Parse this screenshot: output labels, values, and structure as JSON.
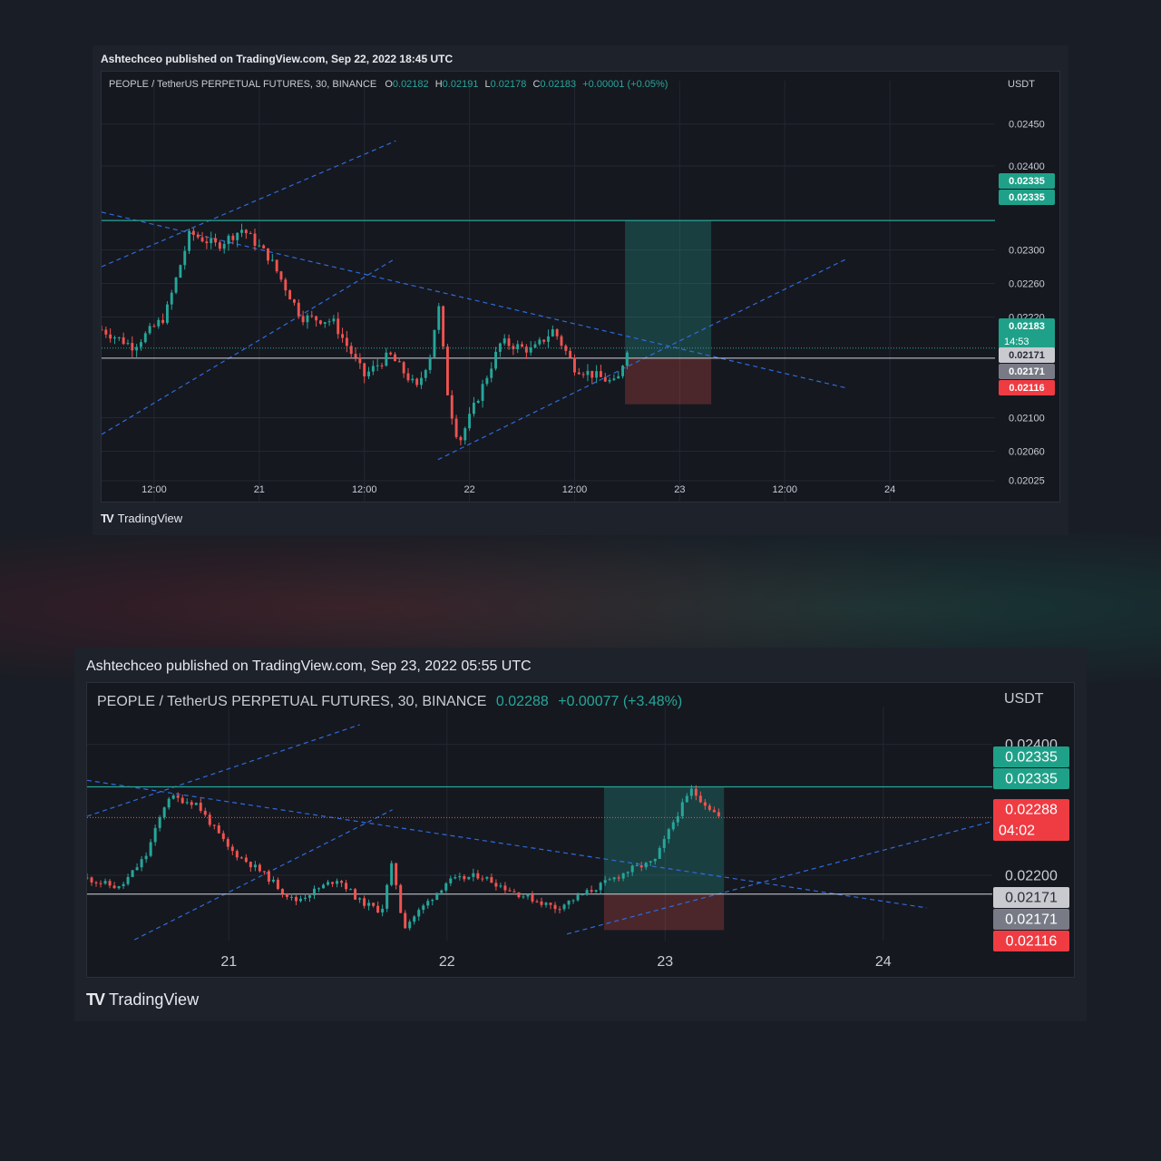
{
  "card1": {
    "publisher": "Ashtechceo published on TradingView.com, Sep 22, 2022 18:45 UTC",
    "symbol": "PEOPLE / TetherUS PERPETUAL FUTURES, 30, BINANCE",
    "ohlc": {
      "o_label": "O",
      "o": "0.02182",
      "h_label": "H",
      "h": "0.02191",
      "l_label": "L",
      "l": "0.02178",
      "c_label": "C",
      "c": "0.02183",
      "change": "+0.00001 (+0.05%)"
    },
    "currency": "USDT",
    "brand": "TradingView"
  },
  "card2": {
    "publisher": "Ashtechceo published on TradingView.com, Sep 23, 2022 05:55 UTC",
    "symbol": "PEOPLE / TetherUS PERPETUAL FUTURES, 30, BINANCE",
    "last": "0.02288",
    "change": "+0.00077 (+3.48%)",
    "currency": "USDT",
    "brand": "TradingView"
  },
  "colors": {
    "up": "#26a69a",
    "down": "#ef5350",
    "trend": "#2f6bdc",
    "target": "#26a69a",
    "stop": "#ef5350",
    "neutral": "#d1d4dc"
  },
  "chart_data": [
    {
      "type": "candlestick",
      "title": "PEOPLE / TetherUS PERPETUAL FUTURES, 30, BINANCE",
      "ylabel": "USDT",
      "ylim": [
        0.02,
        0.0248
      ],
      "x_ticks": [
        "12:00",
        "21",
        "12:00",
        "22",
        "12:00",
        "23",
        "12:00",
        "24"
      ],
      "y_ticks": [
        "0.02450",
        "0.02400",
        "0.02300",
        "0.02260",
        "0.02220",
        "0.02100",
        "0.02060",
        "0.02025"
      ],
      "x_range_days": [
        20.25,
        24.5
      ],
      "path": [
        [
          20.25,
          0.02205
        ],
        [
          20.4,
          0.02185
        ],
        [
          20.55,
          0.0222
        ],
        [
          20.67,
          0.0232
        ],
        [
          20.8,
          0.02305
        ],
        [
          20.92,
          0.02325
        ],
        [
          21.05,
          0.0229
        ],
        [
          21.2,
          0.0222
        ],
        [
          21.35,
          0.02215
        ],
        [
          21.5,
          0.0215
        ],
        [
          21.62,
          0.02175
        ],
        [
          21.75,
          0.02135
        ],
        [
          21.82,
          0.0218
        ],
        [
          21.85,
          0.0224
        ],
        [
          21.9,
          0.0212
        ],
        [
          21.95,
          0.0207
        ],
        [
          22.05,
          0.0213
        ],
        [
          22.15,
          0.0219
        ],
        [
          22.3,
          0.0218
        ],
        [
          22.4,
          0.02205
        ],
        [
          22.5,
          0.0216
        ],
        [
          22.6,
          0.0215
        ],
        [
          22.7,
          0.0214
        ],
        [
          22.75,
          0.02183
        ]
      ],
      "drawings": {
        "horizontal_levels": [
          "0.02335",
          "0.02171"
        ],
        "target": "0.02335",
        "entry": "0.02171",
        "stop": "0.02116"
      },
      "price_labels": [
        {
          "value": "0.02335",
          "style": "target"
        },
        {
          "value": "0.02335",
          "style": "target"
        },
        {
          "value": "0.02183",
          "sub": "14:53",
          "style": "last"
        },
        {
          "value": "0.02171",
          "style": "entry"
        },
        {
          "value": "0.02171",
          "style": "entry2"
        },
        {
          "value": "0.02116",
          "style": "stop"
        }
      ]
    },
    {
      "type": "candlestick",
      "title": "PEOPLE / TetherUS PERPETUAL FUTURES, 30, BINANCE",
      "ylabel": "USDT",
      "ylim": [
        0.021,
        0.0243
      ],
      "x_ticks": [
        "21",
        "22",
        "23",
        "24"
      ],
      "y_ticks": [
        "0.02400",
        "0.02200"
      ],
      "x_range_days": [
        20.35,
        24.5
      ],
      "path": [
        [
          20.35,
          0.02195
        ],
        [
          20.5,
          0.0218
        ],
        [
          20.62,
          0.0223
        ],
        [
          20.72,
          0.0232
        ],
        [
          20.85,
          0.0231
        ],
        [
          21.0,
          0.0224
        ],
        [
          21.15,
          0.02205
        ],
        [
          21.3,
          0.0216
        ],
        [
          21.5,
          0.02195
        ],
        [
          21.6,
          0.0216
        ],
        [
          21.7,
          0.02145
        ],
        [
          21.75,
          0.0222
        ],
        [
          21.8,
          0.0212
        ],
        [
          22.0,
          0.0219
        ],
        [
          22.15,
          0.022
        ],
        [
          22.3,
          0.02175
        ],
        [
          22.5,
          0.0215
        ],
        [
          22.65,
          0.02175
        ],
        [
          22.85,
          0.0221
        ],
        [
          22.95,
          0.0222
        ],
        [
          23.05,
          0.0229
        ],
        [
          23.12,
          0.0233
        ],
        [
          23.25,
          0.02288
        ]
      ],
      "drawings": {
        "horizontal_levels": [
          "0.02335",
          "0.02171"
        ],
        "target": "0.02335",
        "entry": "0.02171",
        "stop": "0.02116"
      },
      "price_labels": [
        {
          "value": "0.02335",
          "style": "target"
        },
        {
          "value": "0.02335",
          "style": "target"
        },
        {
          "value": "0.02288",
          "sub": "04:02",
          "style": "last-down"
        },
        {
          "value": "0.02171",
          "style": "entry"
        },
        {
          "value": "0.02171",
          "style": "entry2"
        },
        {
          "value": "0.02116",
          "style": "stop"
        }
      ]
    }
  ]
}
